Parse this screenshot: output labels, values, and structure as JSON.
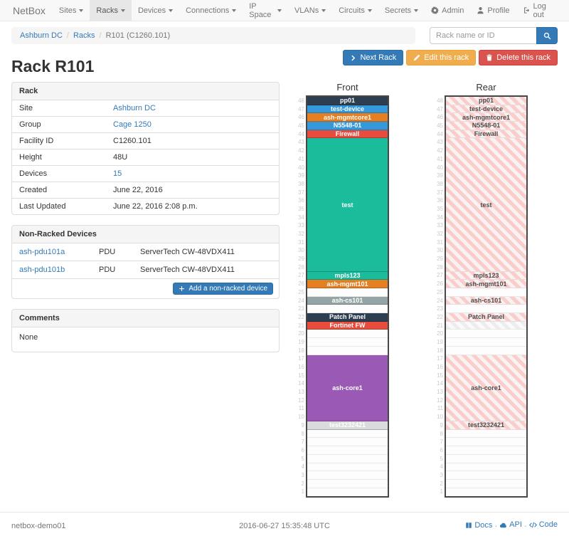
{
  "navbar": {
    "brand": "NetBox",
    "items": [
      {
        "label": "Sites",
        "active": false
      },
      {
        "label": "Racks",
        "active": true
      },
      {
        "label": "Devices",
        "active": false
      },
      {
        "label": "Connections",
        "active": false
      },
      {
        "label": "IP Space",
        "active": false
      },
      {
        "label": "VLANs",
        "active": false
      },
      {
        "label": "Circuits",
        "active": false
      },
      {
        "label": "Secrets",
        "active": false
      }
    ],
    "right": [
      {
        "icon": "gear-icon",
        "label": "Admin"
      },
      {
        "icon": "user-icon",
        "label": "Profile"
      },
      {
        "icon": "logout-icon",
        "label": "Log out"
      }
    ]
  },
  "breadcrumb": {
    "links": [
      "Ashburn DC",
      "Racks"
    ],
    "current": "R101 (C1260.101)"
  },
  "search": {
    "placeholder": "Rack name or ID",
    "icon": "search-icon"
  },
  "actions": {
    "next_label": "Next Rack",
    "edit_label": "Edit this rack",
    "delete_label": "Delete this rack"
  },
  "page_title": "Rack R101",
  "rack_panel": {
    "title": "Rack",
    "rows": [
      {
        "label": "Site",
        "value": "Ashburn DC",
        "link": true
      },
      {
        "label": "Group",
        "value": "Cage 1250",
        "link": true
      },
      {
        "label": "Facility ID",
        "value": "C1260.101",
        "link": false
      },
      {
        "label": "Height",
        "value": "48U",
        "link": false
      },
      {
        "label": "Devices",
        "value": "15",
        "link": true
      },
      {
        "label": "Created",
        "value": "June 22, 2016",
        "link": false
      },
      {
        "label": "Last Updated",
        "value": "June 22, 2016 2:08 p.m.",
        "link": false
      }
    ]
  },
  "non_racked": {
    "title": "Non-Racked Devices",
    "rows": [
      {
        "name": "ash-pdu101a",
        "type": "PDU",
        "model": "ServerTech CW-48VDX411"
      },
      {
        "name": "ash-pdu101b",
        "type": "PDU",
        "model": "ServerTech CW-48VDX411"
      }
    ],
    "add_label": "Add a non-racked device"
  },
  "comments": {
    "title": "Comments",
    "body": "None"
  },
  "elevations": {
    "unit_count": 48,
    "front": {
      "title": "Front",
      "slots": [
        {
          "label": "pp01",
          "size": 1,
          "type": "dark"
        },
        {
          "label": "test-device",
          "size": 1,
          "type": "blue"
        },
        {
          "label": "ash-mgmtcore1",
          "size": 1,
          "type": "orange"
        },
        {
          "label": "N5548-01",
          "size": 1,
          "type": "blue"
        },
        {
          "label": "Firewall",
          "size": 1,
          "type": "red"
        },
        {
          "label": "test",
          "size": 16,
          "type": "teal"
        },
        {
          "label": "mpls123",
          "size": 1,
          "type": "teal"
        },
        {
          "label": "ash-mgmt101",
          "size": 1,
          "type": "orange"
        },
        {
          "label": "",
          "size": 1,
          "type": "empty"
        },
        {
          "label": "ash-cs101",
          "size": 1,
          "type": "gray"
        },
        {
          "label": "",
          "size": 1,
          "type": "empty"
        },
        {
          "label": "Patch Panel",
          "size": 1,
          "type": "dark"
        },
        {
          "label": "Fortinet FW",
          "size": 1,
          "type": "red"
        },
        {
          "label": "",
          "size": 1,
          "type": "empty"
        },
        {
          "label": "",
          "size": 1,
          "type": "empty"
        },
        {
          "label": "",
          "size": 1,
          "type": "empty"
        },
        {
          "label": "ash-core1",
          "size": 8,
          "type": "purple"
        },
        {
          "label": "test3232421",
          "size": 1,
          "type": "lightgray"
        },
        {
          "label": "",
          "size": 1,
          "type": "empty"
        },
        {
          "label": "",
          "size": 1,
          "type": "empty"
        },
        {
          "label": "",
          "size": 1,
          "type": "empty"
        },
        {
          "label": "",
          "size": 1,
          "type": "empty"
        },
        {
          "label": "",
          "size": 1,
          "type": "empty"
        },
        {
          "label": "",
          "size": 1,
          "type": "empty"
        },
        {
          "label": "",
          "size": 1,
          "type": "empty"
        },
        {
          "label": "",
          "size": 1,
          "type": "empty"
        }
      ]
    },
    "rear": {
      "title": "Rear",
      "slots": [
        {
          "label": "pp01",
          "size": 1,
          "type": "striped"
        },
        {
          "label": "test-device",
          "size": 1,
          "type": "striped"
        },
        {
          "label": "ash-mgmtcore1",
          "size": 1,
          "type": "striped"
        },
        {
          "label": "N5548-01",
          "size": 1,
          "type": "striped"
        },
        {
          "label": "Firewall",
          "size": 1,
          "type": "striped"
        },
        {
          "label": "test",
          "size": 16,
          "type": "striped"
        },
        {
          "label": "mpls123",
          "size": 1,
          "type": "striped"
        },
        {
          "label": "ash-mgmt101",
          "size": 1,
          "type": "striped"
        },
        {
          "label": "",
          "size": 1,
          "type": "empty"
        },
        {
          "label": "ash-cs101",
          "size": 1,
          "type": "striped"
        },
        {
          "label": "",
          "size": 1,
          "type": "empty"
        },
        {
          "label": "Patch Panel",
          "size": 1,
          "type": "striped"
        },
        {
          "label": "",
          "size": 1,
          "type": "striped-light"
        },
        {
          "label": "",
          "size": 1,
          "type": "empty"
        },
        {
          "label": "",
          "size": 1,
          "type": "empty"
        },
        {
          "label": "",
          "size": 1,
          "type": "empty"
        },
        {
          "label": "ash-core1",
          "size": 8,
          "type": "striped"
        },
        {
          "label": "test3232421",
          "size": 1,
          "type": "striped"
        },
        {
          "label": "",
          "size": 1,
          "type": "empty"
        },
        {
          "label": "",
          "size": 1,
          "type": "empty"
        },
        {
          "label": "",
          "size": 1,
          "type": "empty"
        },
        {
          "label": "",
          "size": 1,
          "type": "empty"
        },
        {
          "label": "",
          "size": 1,
          "type": "empty"
        },
        {
          "label": "",
          "size": 1,
          "type": "empty"
        },
        {
          "label": "",
          "size": 1,
          "type": "empty"
        },
        {
          "label": "",
          "size": 1,
          "type": "empty"
        }
      ]
    }
  },
  "colors": {
    "primary": "#337ab7",
    "warning": "#f0ad4e",
    "danger": "#d9534f",
    "device_dark": "#2c3e50",
    "device_blue": "#3498db",
    "device_orange": "#e67e22",
    "device_red": "#e74c3c",
    "device_teal": "#1abc9c",
    "device_gray": "#95a5a6",
    "device_purple": "#9b59b6",
    "device_lightgray": "#d9dbdc",
    "rear_stripe": "#fbcdca"
  },
  "footer": {
    "hostname": "netbox-demo01",
    "timestamp": "2016-06-27 15:35:48 UTC",
    "links": [
      {
        "icon": "book-icon",
        "label": "Docs"
      },
      {
        "icon": "cloud-icon",
        "label": "API"
      },
      {
        "icon": "code-icon",
        "label": "Code"
      }
    ]
  }
}
